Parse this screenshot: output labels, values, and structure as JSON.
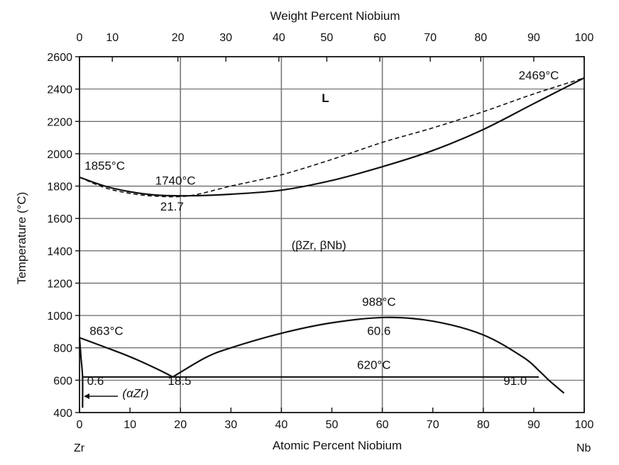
{
  "chart_data": {
    "type": "line",
    "title": "Weight Percent Niobium",
    "xlabel": "Atomic Percent Niobium",
    "ylabel": "Temperature (°C)",
    "xlim": [
      0,
      100
    ],
    "ylim": [
      400,
      2600
    ],
    "x_ticks": [
      0,
      10,
      20,
      30,
      40,
      50,
      60,
      70,
      80,
      90,
      100
    ],
    "top_ticks": [
      0,
      10,
      20,
      30,
      40,
      50,
      60,
      70,
      80,
      90,
      100
    ],
    "top_tick_positions_at": [
      0,
      6.5,
      19.5,
      29,
      39.5,
      49,
      59.5,
      69.5,
      79.5,
      90,
      100
    ],
    "y_ticks": [
      400,
      600,
      800,
      1000,
      1200,
      1400,
      1600,
      1800,
      2000,
      2200,
      2400,
      2600
    ],
    "y_tick_labels": [
      "400",
      "600",
      "800",
      "1000",
      "1200",
      "1400",
      "1600",
      "1800",
      "2000",
      "2200",
      "2400",
      "2600"
    ],
    "x_vertical_gridlines": [
      20,
      40,
      60,
      80
    ],
    "horizontal_gridlines": [
      600,
      800,
      1000,
      1200,
      1400,
      1600,
      1800,
      2000,
      2200,
      2400
    ],
    "end_labels": {
      "left": "Zr",
      "right": "Nb"
    },
    "series": [
      {
        "style": "solid",
        "points": [
          [
            0,
            1855
          ],
          [
            5,
            1800
          ],
          [
            10,
            1765
          ],
          [
            15,
            1745
          ],
          [
            21.7,
            1740
          ],
          [
            30,
            1750
          ],
          [
            40,
            1775
          ],
          [
            50,
            1835
          ],
          [
            60,
            1920
          ],
          [
            70,
            2020
          ],
          [
            80,
            2150
          ],
          [
            90,
            2310
          ],
          [
            100,
            2469
          ]
        ]
      },
      {
        "style": "dashed",
        "points": [
          [
            0,
            1855
          ],
          [
            5,
            1790
          ],
          [
            10,
            1755
          ],
          [
            15,
            1738
          ],
          [
            21.7,
            1740
          ],
          [
            30,
            1800
          ],
          [
            40,
            1870
          ],
          [
            50,
            1965
          ],
          [
            60,
            2070
          ],
          [
            70,
            2160
          ],
          [
            80,
            2260
          ],
          [
            90,
            2370
          ],
          [
            100,
            2469
          ]
        ]
      },
      {
        "style": "solid",
        "points": [
          [
            0,
            863
          ],
          [
            5,
            805
          ],
          [
            10,
            745
          ],
          [
            15,
            675
          ],
          [
            18.5,
            620
          ]
        ]
      },
      {
        "style": "solid",
        "points": [
          [
            18.5,
            620
          ],
          [
            25,
            740
          ],
          [
            30,
            800
          ],
          [
            40,
            890
          ],
          [
            50,
            955
          ],
          [
            60.6,
            988
          ],
          [
            70,
            965
          ],
          [
            80,
            880
          ],
          [
            88,
            740
          ],
          [
            91,
            660
          ],
          [
            93,
            600
          ],
          [
            96,
            520
          ]
        ]
      },
      {
        "style": "solid",
        "points": [
          [
            0.6,
            620
          ],
          [
            91,
            620
          ]
        ]
      },
      {
        "style": "solid",
        "points": [
          [
            0,
            863
          ],
          [
            0.3,
            740
          ],
          [
            0.6,
            620
          ],
          [
            0.6,
            430
          ]
        ]
      }
    ],
    "annotations": [
      {
        "text": "L",
        "x": 48,
        "y": 2320
      },
      {
        "text": "2469°C",
        "x": 87,
        "y": 2460
      },
      {
        "text": "1855°C",
        "x": 1,
        "y": 1900
      },
      {
        "text": "1740°C",
        "x": 15,
        "y": 1810
      },
      {
        "text": "21.7",
        "x": 16,
        "y": 1650
      },
      {
        "text": "(βZr, βNb)",
        "x": 42,
        "y": 1410
      },
      {
        "text": "988°C",
        "x": 56,
        "y": 1060
      },
      {
        "text": "863°C",
        "x": 2,
        "y": 880
      },
      {
        "text": "60.6",
        "x": 57,
        "y": 880
      },
      {
        "text": "620°C",
        "x": 55,
        "y": 670
      },
      {
        "text": "0.6",
        "x": 1.5,
        "y": 570
      },
      {
        "text": "18.5",
        "x": 17.5,
        "y": 570
      },
      {
        "text": "91.0",
        "x": 84,
        "y": 570
      },
      {
        "text": "(αZr)",
        "x": 8.5,
        "y": 495
      }
    ]
  }
}
